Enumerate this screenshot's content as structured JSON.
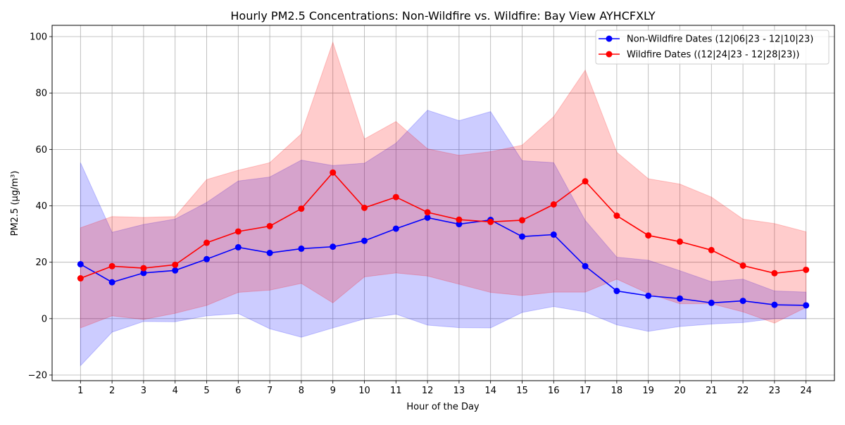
{
  "chart_data": {
    "type": "line",
    "title": "Hourly PM2.5 Concentrations: Non-Wildfire vs. Wildfire: Bay View AYHCFXLY",
    "xlabel": "Hour of the Day",
    "ylabel": "PM2.5 (µg/m³)",
    "x": [
      1,
      2,
      3,
      4,
      5,
      6,
      7,
      8,
      9,
      10,
      11,
      12,
      13,
      14,
      15,
      16,
      17,
      18,
      19,
      20,
      21,
      22,
      23,
      24
    ],
    "xlim": [
      0.1,
      24.9
    ],
    "ylim": [
      -22,
      104
    ],
    "yticks": [
      -20,
      0,
      20,
      40,
      60,
      80,
      100
    ],
    "grid": true,
    "legend_position": "top-right",
    "series": [
      {
        "name": "Non-Wildfire Dates (12|06|23 - 12|10|23)",
        "color": "#0000ff",
        "values": [
          19.3,
          12.9,
          16.2,
          17.1,
          21.1,
          25.3,
          23.3,
          24.8,
          25.5,
          27.6,
          31.9,
          35.8,
          33.5,
          35.0,
          29.1,
          29.8,
          18.6,
          9.8,
          8.1,
          7.1,
          5.6,
          6.3,
          4.9,
          4.7
        ],
        "band_lower": [
          -16.7,
          -4.8,
          -1.0,
          -1.1,
          1.0,
          1.8,
          -3.6,
          -6.6,
          -3.3,
          -0.1,
          1.6,
          -2.3,
          -3.2,
          -3.3,
          2.2,
          4.3,
          2.4,
          -2.2,
          -4.5,
          -2.8,
          -1.9,
          -1.4,
          0.0,
          0.0
        ],
        "band_upper": [
          55.3,
          30.6,
          33.4,
          35.3,
          41.2,
          48.8,
          50.2,
          56.2,
          54.3,
          55.1,
          62.2,
          73.9,
          70.2,
          73.4,
          56.0,
          55.3,
          34.8,
          21.8,
          20.7,
          17.0,
          13.1,
          14.0,
          9.8,
          9.4
        ]
      },
      {
        "name": "Wildfire Dates ((12|24|23 - 12|28|23))",
        "color": "#ff0000",
        "values": [
          14.3,
          18.6,
          17.9,
          19.1,
          26.9,
          30.9,
          32.8,
          39.0,
          51.8,
          39.3,
          43.1,
          37.7,
          35.1,
          34.3,
          34.9,
          40.5,
          48.7,
          36.5,
          29.5,
          27.3,
          24.3,
          18.8,
          16.1,
          17.3
        ],
        "band_lower": [
          -3.3,
          1.0,
          -0.3,
          1.9,
          4.7,
          9.3,
          10.1,
          12.5,
          5.6,
          14.8,
          16.2,
          15.1,
          12.2,
          9.3,
          8.2,
          9.4,
          9.4,
          14.0,
          8.9,
          5.3,
          5.3,
          2.4,
          -1.6,
          4.0
        ],
        "band_upper": [
          32.2,
          36.2,
          35.9,
          36.2,
          49.3,
          52.6,
          55.3,
          65.5,
          98.0,
          63.7,
          69.9,
          60.2,
          57.9,
          59.2,
          61.5,
          71.6,
          88.1,
          59.0,
          49.6,
          47.7,
          43.1,
          35.3,
          33.7,
          30.8
        ]
      }
    ]
  }
}
